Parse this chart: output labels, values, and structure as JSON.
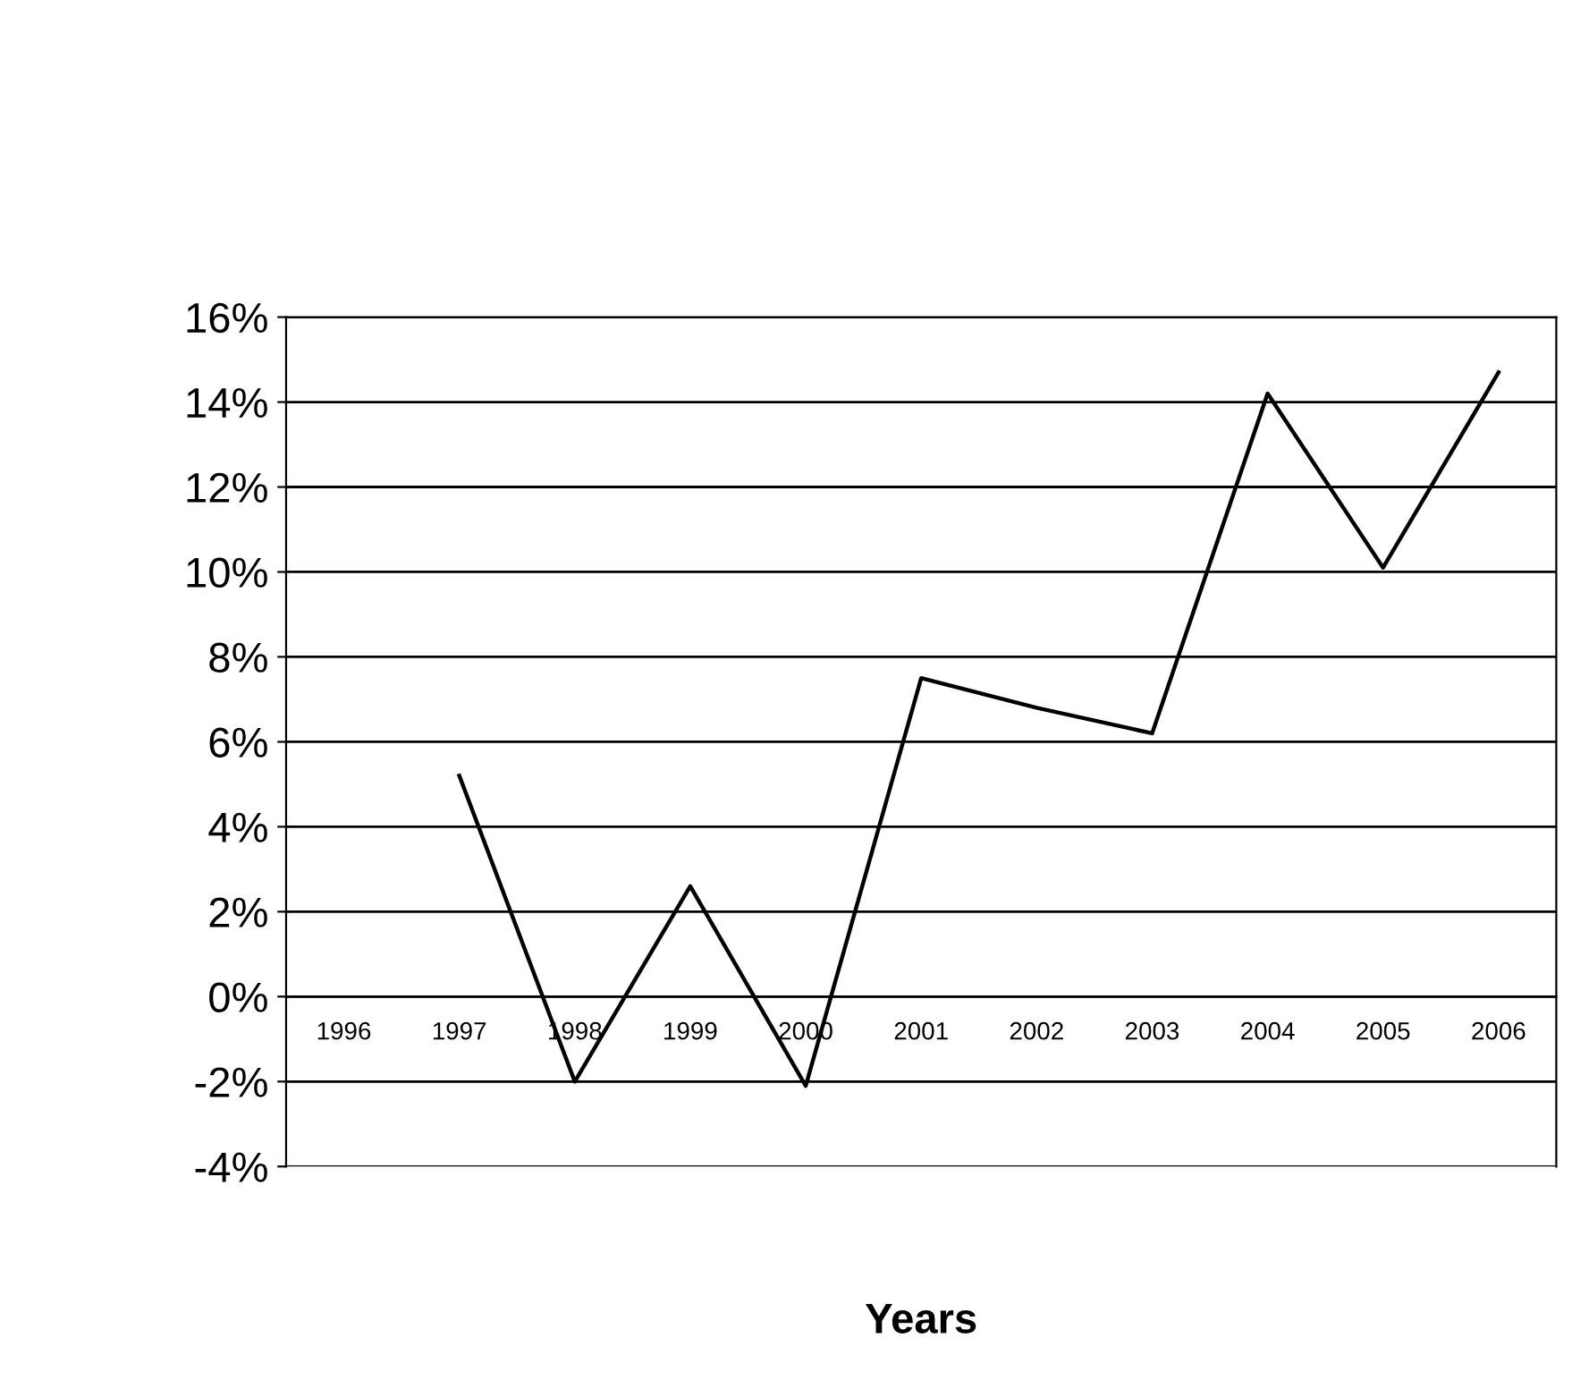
{
  "chart_data": {
    "type": "line",
    "xlabel": "Years",
    "categories": [
      "1996",
      "1997",
      "1998",
      "1999",
      "2000",
      "2001",
      "2002",
      "2003",
      "2004",
      "2005",
      "2006"
    ],
    "series": [
      {
        "color": "#000000",
        "values": [
          null,
          5.2,
          -2.0,
          2.6,
          -2.1,
          7.5,
          6.8,
          6.2,
          14.2,
          10.1,
          14.7
        ]
      }
    ],
    "ylim": [
      -4,
      16
    ],
    "yticks": [
      {
        "value": -4,
        "label": "-4%"
      },
      {
        "value": -2,
        "label": "-2%"
      },
      {
        "value": 0,
        "label": "0%"
      },
      {
        "value": 2,
        "label": "2%"
      },
      {
        "value": 4,
        "label": "4%"
      },
      {
        "value": 6,
        "label": "6%"
      },
      {
        "value": 8,
        "label": "8%"
      },
      {
        "value": 10,
        "label": "10%"
      },
      {
        "value": 12,
        "label": "12%"
      },
      {
        "value": 14,
        "label": "14%"
      },
      {
        "value": 16,
        "label": "16%"
      }
    ],
    "grid": "y",
    "legend": false,
    "marker": "none",
    "line_style": "solid"
  }
}
